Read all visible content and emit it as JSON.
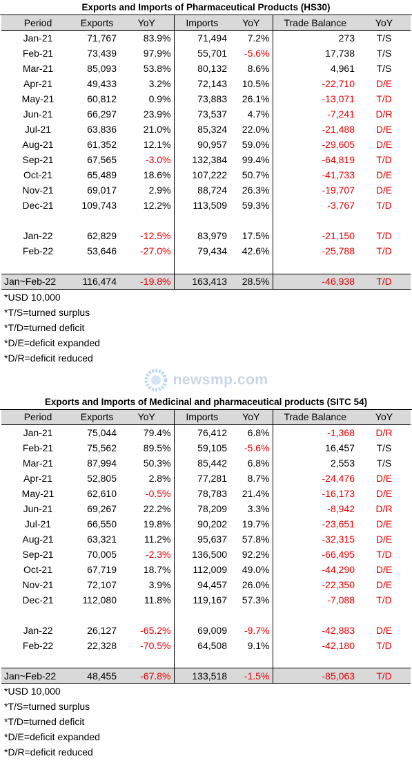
{
  "tables": [
    {
      "title": "Exports and Imports of Pharmaceutical Products (HS30)",
      "headers": [
        "Period",
        "Exports",
        "YoY",
        "Imports",
        "YoY",
        "Trade Balance",
        "YoY"
      ],
      "groups": [
        [
          [
            "Jan-21",
            "71,767",
            "83.9%",
            "71,494",
            "7.2%",
            "273",
            "T/S"
          ],
          [
            "Feb-21",
            "73,439",
            "97.9%",
            "55,701",
            "-5.6%",
            "17,738",
            "T/S"
          ],
          [
            "Mar-21",
            "85,093",
            "53.8%",
            "80,132",
            "8.6%",
            "4,961",
            "T/S"
          ],
          [
            "Apr-21",
            "49,433",
            "3.2%",
            "72,143",
            "10.5%",
            "-22,710",
            "D/E"
          ],
          [
            "May-21",
            "60,812",
            "0.9%",
            "73,883",
            "26.1%",
            "-13,071",
            "T/D"
          ],
          [
            "Jun-21",
            "66,297",
            "23.9%",
            "73,537",
            "4.7%",
            "-7,241",
            "D/R"
          ],
          [
            "Jul-21",
            "63,836",
            "21.0%",
            "85,324",
            "22.0%",
            "-21,488",
            "D/E"
          ],
          [
            "Aug-21",
            "61,352",
            "12.1%",
            "90,957",
            "59.0%",
            "-29,605",
            "D/E"
          ],
          [
            "Sep-21",
            "67,565",
            "-3.0%",
            "132,384",
            "99.4%",
            "-64,819",
            "T/D"
          ],
          [
            "Oct-21",
            "65,489",
            "18.6%",
            "107,222",
            "50.7%",
            "-41,733",
            "D/E"
          ],
          [
            "Nov-21",
            "69,017",
            "2.9%",
            "88,724",
            "26.3%",
            "-19,707",
            "D/E"
          ],
          [
            "Dec-21",
            "109,743",
            "12.2%",
            "113,509",
            "59.3%",
            "-3,767",
            "T/D"
          ]
        ],
        [
          [
            "Jan-22",
            "62,829",
            "-12.5%",
            "83,979",
            "17.5%",
            "-21,150",
            "T/D"
          ],
          [
            "Feb-22",
            "53,646",
            "-27.0%",
            "79,434",
            "42.6%",
            "-25,788",
            "T/D"
          ]
        ]
      ],
      "total": [
        "Jan~Feb-22",
        "116,474",
        "-19.8%",
        "163,413",
        "28.5%",
        "-46,938",
        "T/D"
      ],
      "notes": [
        "*USD 10,000",
        "*T/S=turned surplus",
        "*T/D=turned deficit",
        "*D/E=deficit expanded",
        "*D/R=deficit reduced"
      ]
    },
    {
      "title": "Exports and Imports of Medicinal and pharmaceutical products (SITC 54)",
      "headers": [
        "Period",
        "Exports",
        "YoY",
        "Imports",
        "YoY",
        "Trade Balance",
        "YoY"
      ],
      "groups": [
        [
          [
            "Jan-21",
            "75,044",
            "79.4%",
            "76,412",
            "6.8%",
            "-1,368",
            "D/R"
          ],
          [
            "Feb-21",
            "75,562",
            "89.5%",
            "59,105",
            "-5.6%",
            "16,457",
            "T/S"
          ],
          [
            "Mar-21",
            "87,994",
            "50.3%",
            "85,442",
            "6.8%",
            "2,553",
            "T/S"
          ],
          [
            "Apr-21",
            "52,805",
            "2.8%",
            "77,281",
            "8.7%",
            "-24,476",
            "D/E"
          ],
          [
            "May-21",
            "62,610",
            "-0.5%",
            "78,783",
            "21.4%",
            "-16,173",
            "D/E"
          ],
          [
            "Jun-21",
            "69,267",
            "22.2%",
            "78,209",
            "3.3%",
            "-8,942",
            "D/R"
          ],
          [
            "Jul-21",
            "66,550",
            "19.8%",
            "90,202",
            "19.7%",
            "-23,651",
            "D/E"
          ],
          [
            "Aug-21",
            "63,321",
            "11.2%",
            "95,637",
            "57.8%",
            "-32,315",
            "D/E"
          ],
          [
            "Sep-21",
            "70,005",
            "-2.3%",
            "136,500",
            "92.2%",
            "-66,495",
            "T/D"
          ],
          [
            "Oct-21",
            "67,719",
            "18.7%",
            "112,009",
            "49.0%",
            "-44,290",
            "D/E"
          ],
          [
            "Nov-21",
            "72,107",
            "3.9%",
            "94,457",
            "26.0%",
            "-22,350",
            "D/E"
          ],
          [
            "Dec-21",
            "112,080",
            "11.8%",
            "119,167",
            "57.3%",
            "-7,088",
            "T/D"
          ]
        ],
        [
          [
            "Jan-22",
            "26,127",
            "-65.2%",
            "69,009",
            "-9.7%",
            "-42,883",
            "D/E"
          ],
          [
            "Feb-22",
            "22,328",
            "-70.5%",
            "64,508",
            "9.1%",
            "-42,180",
            "T/D"
          ]
        ]
      ],
      "total": [
        "Jan~Feb-22",
        "48,455",
        "-67.8%",
        "133,518",
        "-1.5%",
        "-85,063",
        "T/D"
      ],
      "notes": [
        "*USD 10,000",
        "*T/S=turned surplus",
        "*T/D=turned deficit",
        "*D/E=deficit expanded",
        "*D/R=deficit reduced"
      ]
    }
  ],
  "watermark": "newsmp.com"
}
